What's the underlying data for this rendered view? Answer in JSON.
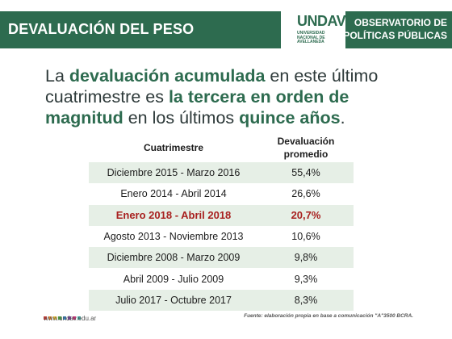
{
  "header": {
    "left_title": "DEVALUACIÓN DEL PESO",
    "logo_text": "UNDAV",
    "logo_sub": [
      "UNIVERSIDAD",
      "NACIONAL DE",
      "AVELLANEDA"
    ],
    "right_title_line1": "OBSERVATORIO DE",
    "right_title_line2": "POLÍTICAS PÚBLICAS"
  },
  "headline": {
    "p1": "La ",
    "b1": "devaluación acumulada",
    "p2": " en este último cuatrimestre es ",
    "b2": "la tercera en orden de magnitud",
    "p3": " en los últimos ",
    "b3": "quince años",
    "p4": "."
  },
  "table": {
    "columns": [
      "Cuatrimestre",
      "Devaluación promedio"
    ],
    "rows": [
      {
        "period": "Diciembre 2015 - Marzo 2016",
        "value": "55,4%"
      },
      {
        "period": "Enero 2014 - Abril 2014",
        "value": "26,6%"
      },
      {
        "period": "Enero 2018 - Abril 2018",
        "value": "20,7%"
      },
      {
        "period": "Agosto 2013 - Noviembre 2013",
        "value": "10,6%"
      },
      {
        "period": "Diciembre 2008 - Marzo 2009",
        "value": "9,8%"
      },
      {
        "period": "Abril 2009 - Julio 2009",
        "value": "9,3%"
      },
      {
        "period": "Julio 2017 - Octubre 2017",
        "value": "8,3%"
      }
    ],
    "highlight_color": "#a8201f",
    "shade_color": "#e6efe6"
  },
  "footer": {
    "url": "www.undav.edu.ar",
    "source": "Fuente: elaboración propia en base a comunicación \"A\"3500 BCRA.",
    "dot_colors": [
      "#d6332c",
      "#e8862c",
      "#f1c12e",
      "#4a9a45",
      "#2f7fc1",
      "#7a3e9d",
      "#cc2f7a",
      "#3aa6a0"
    ]
  },
  "brand_color": "#2d6b4f"
}
